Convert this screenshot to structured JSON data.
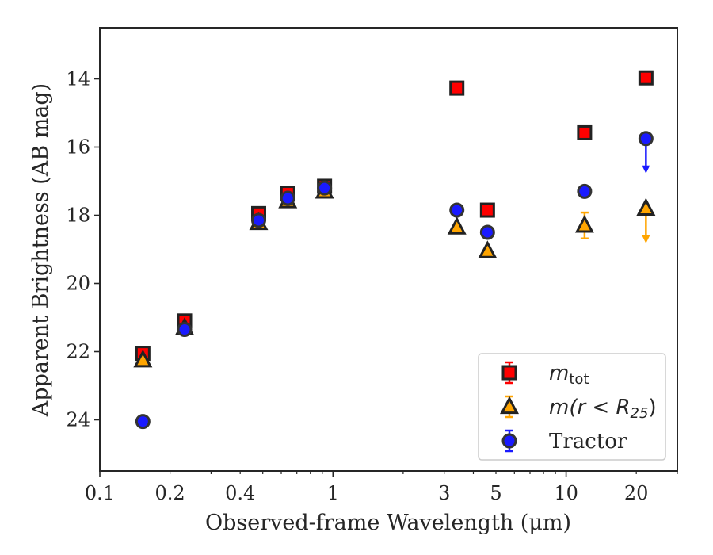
{
  "chart_data": {
    "type": "scatter",
    "xlabel": "Observed-frame Wavelength (μm)",
    "ylabel": "Apparent Brightness (AB mag)",
    "xscale": "log",
    "xlim": [
      0.1,
      30
    ],
    "ylim": [
      25.5,
      12.5
    ],
    "y_inverted": true,
    "x_ticks": [
      0.1,
      0.2,
      0.4,
      1,
      3,
      5,
      10,
      20
    ],
    "x_tick_labels": [
      "0.1",
      "0.2",
      "0.4",
      "1",
      "3",
      "5",
      "10",
      "20"
    ],
    "y_ticks": [
      14,
      16,
      18,
      20,
      22,
      24
    ],
    "y_tick_labels": [
      "14",
      "16",
      "18",
      "20",
      "22",
      "24"
    ],
    "grid": false,
    "legend_position": "lower right",
    "series": [
      {
        "name": "m_tot",
        "legend_main": "m",
        "legend_sub": "tot",
        "marker": "square",
        "face_color": "#ff0000",
        "edge_color": "#222222",
        "err_color": "#ff0000",
        "x": [
          0.153,
          0.231,
          0.48,
          0.64,
          0.92,
          3.4,
          4.6,
          12.0,
          22.0
        ],
        "y": [
          22.05,
          21.1,
          17.95,
          17.35,
          17.15,
          14.27,
          17.85,
          15.58,
          13.97
        ],
        "yerr": [
          0.05,
          0.05,
          0.03,
          0.03,
          0.03,
          0.03,
          0.03,
          0.03,
          0.03
        ],
        "upper_limit": [
          false,
          false,
          false,
          false,
          false,
          false,
          false,
          false,
          false
        ]
      },
      {
        "name": "m(r < R25)",
        "legend_text": "m(r < R",
        "legend_sub": "25",
        "legend_close": ")",
        "marker": "triangle",
        "face_color": "#ffa500",
        "edge_color": "#222222",
        "err_color": "#ffa500",
        "x": [
          0.153,
          0.231,
          0.48,
          0.64,
          0.92,
          3.4,
          4.6,
          12.0,
          22.0
        ],
        "y": [
          22.25,
          21.3,
          18.22,
          17.58,
          17.3,
          18.35,
          19.05,
          18.3,
          17.8
        ],
        "yerr": [
          0.05,
          0.05,
          0.03,
          0.03,
          0.03,
          0.03,
          0.03,
          0.38,
          0.0
        ],
        "upper_limit": [
          false,
          false,
          false,
          false,
          false,
          false,
          false,
          false,
          true
        ]
      },
      {
        "name": "Tractor",
        "legend_text": "Tractor",
        "marker": "circle",
        "face_color": "#1a1aff",
        "edge_color": "#333333",
        "err_color": "#1a1aff",
        "x": [
          0.153,
          0.231,
          0.48,
          0.64,
          0.92,
          3.4,
          4.6,
          12.0,
          22.0
        ],
        "y": [
          24.05,
          21.35,
          18.15,
          17.5,
          17.2,
          17.85,
          18.5,
          17.3,
          15.75
        ],
        "yerr": [
          0.05,
          0.05,
          0.03,
          0.03,
          0.03,
          0.03,
          0.03,
          0.03,
          0.0
        ],
        "upper_limit": [
          false,
          false,
          false,
          false,
          false,
          false,
          false,
          false,
          true
        ]
      }
    ]
  }
}
